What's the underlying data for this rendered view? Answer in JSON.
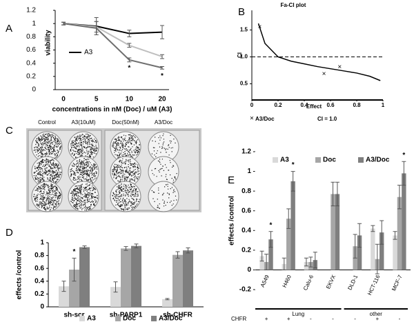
{
  "chart_data": [
    {
      "type": "line",
      "panel_label": "A",
      "x_label": "concentrations in nM (Doc) / uM (A3)",
      "y_label": "viability",
      "categories": [
        "0",
        "5",
        "10",
        "20"
      ],
      "ylim": [
        0,
        1.2
      ],
      "yticks": [
        0,
        0.2,
        0.4,
        0.6,
        0.8,
        1,
        1.2
      ],
      "legend": "left",
      "series": [
        {
          "name": "A3",
          "color": "#000000",
          "values": [
            1,
            0.96,
            0.85,
            0.87
          ],
          "errors": [
            0.02,
            0.13,
            0.05,
            0.1
          ]
        },
        {
          "color": "#bfbfbf",
          "values": [
            1,
            0.95,
            0.67,
            0.5
          ],
          "errors": [
            0.02,
            0.08,
            0.03,
            0.03
          ]
        },
        {
          "color": "#6f6f6f",
          "values": [
            1,
            0.93,
            0.45,
            0.33
          ],
          "errors": [
            0.02,
            0.1,
            0.03,
            0.02
          ],
          "significance": [
            null,
            null,
            "*",
            "*"
          ]
        }
      ]
    },
    {
      "type": "scatter",
      "panel_label": "B",
      "title": "Fa-CI plot",
      "x_label": "Effect",
      "y_label": "CI",
      "xlim": [
        0,
        1
      ],
      "xticks": [
        0,
        0.2,
        0.4,
        0.6,
        0.8,
        1
      ],
      "ylim": [
        0.2,
        1.8
      ],
      "yticks": [
        0.5,
        {
          "value": 1,
          "label": "1.0"
        },
        1.5
      ],
      "series": [
        {
          "name": "A3/Doc",
          "marker": "×",
          "color": "#333333",
          "x": [
            0.06,
            0.55,
            0.67
          ],
          "values": [
            1.55,
            0.68,
            0.81
          ]
        },
        {
          "type": "line",
          "color": "#000000",
          "x": [
            0.05,
            0.1,
            0.2,
            0.3,
            0.4,
            0.5,
            0.6,
            0.7,
            0.8,
            0.9,
            0.98
          ],
          "values": [
            1.62,
            1.25,
            1.0,
            0.92,
            0.87,
            0.82,
            0.78,
            0.74,
            0.7,
            0.64,
            0.56
          ]
        }
      ],
      "reference_line": {
        "value": 1,
        "label": "CI = 1.0",
        "style": "dashed"
      }
    },
    {
      "type": "image",
      "panel_label": "C",
      "column_labels": [
        "Control",
        "A3(10uM)",
        "Doc(50nM)",
        "A3/Doc"
      ]
    },
    {
      "type": "bar",
      "panel_label": "D",
      "y_label": "effects /control",
      "categories": [
        "sh-scr",
        "sh-PARP1",
        "sh-CHFR"
      ],
      "ylim": [
        0,
        1
      ],
      "yticks": [
        0,
        0.2,
        0.4,
        0.6,
        0.8,
        1
      ],
      "legend": "bottom",
      "series": [
        {
          "name": "A3",
          "color": "#d9d9d9",
          "values": [
            0.32,
            0.31,
            0.12
          ],
          "errors": [
            0.08,
            0.08,
            0.01
          ]
        },
        {
          "name": "Doc",
          "color": "#a6a6a6",
          "values": [
            0.58,
            0.91,
            0.81
          ],
          "errors": [
            0.18,
            0.03,
            0.05
          ],
          "significance": [
            "*",
            null,
            null
          ]
        },
        {
          "name": "A3/Doc",
          "color": "#7f7f7f",
          "values": [
            0.93,
            0.95,
            0.88
          ],
          "errors": [
            0.02,
            0.03,
            0.04
          ]
        }
      ]
    },
    {
      "type": "bar",
      "panel_label": "E",
      "y_label": "effects /control",
      "categories": [
        "A549",
        "H460",
        "Calu-6",
        "EKVX",
        "DLD-1",
        "HCT-116",
        "MCF-7"
      ],
      "ylim": [
        -0.2,
        1.2
      ],
      "yticks": [
        -0.2,
        0,
        0.2,
        0.4,
        0.6,
        0.8,
        1,
        1.2
      ],
      "legend": "top",
      "series": [
        {
          "name": "A3",
          "color": "#d9d9d9",
          "values": [
            0.14,
            0.06,
            0.08,
            null,
            null,
            0.42,
            0.35
          ],
          "errors": [
            0.05,
            0.06,
            0.04,
            null,
            null,
            0.03,
            0.04
          ]
        },
        {
          "name": "Doc",
          "color": "#a6a6a6",
          "values": [
            0.08,
            0.52,
            0.08,
            0.77,
            0.24,
            0.11,
            0.74
          ],
          "errors": [
            0.08,
            0.1,
            0.05,
            0.12,
            0.12,
            0.15,
            0.12
          ]
        },
        {
          "name": "A3/Doc",
          "color": "#7f7f7f",
          "values": [
            0.31,
            0.9,
            0.1,
            0.77,
            0.35,
            0.38,
            0.98
          ],
          "errors": [
            0.08,
            0.1,
            0.08,
            0.12,
            0.12,
            0.12,
            0.12
          ],
          "significance": [
            "*",
            "*",
            null,
            null,
            null,
            null,
            "*"
          ]
        }
      ],
      "group_labels": [
        "Lung",
        "Lung",
        "Lung",
        "Lung",
        "other",
        "other",
        "other"
      ],
      "row_label": "CHFR",
      "row_values": [
        "+",
        "+",
        "-",
        "-",
        "-",
        "+",
        "-"
      ]
    }
  ]
}
